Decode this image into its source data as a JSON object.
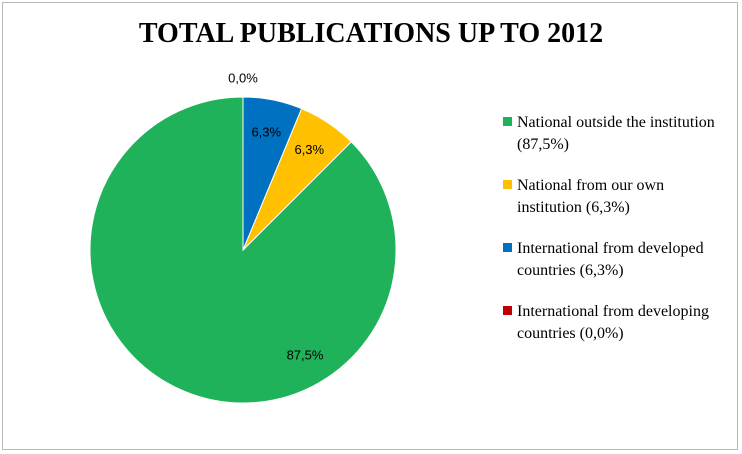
{
  "chart_data": {
    "type": "pie",
    "title": "TOTAL PUBLICATIONS UP TO 2012",
    "slices": [
      {
        "label": "National outside the institution (87,5%)",
        "value": 87.5,
        "data_label": "87,5%",
        "color": "#1fb25a"
      },
      {
        "label": "National from our own institution (6,3%)",
        "value": 6.25,
        "data_label": "6,3%",
        "color": "#ffc000"
      },
      {
        "label": "International from developed countries (6,3%)",
        "value": 6.25,
        "data_label": "6,3%",
        "color": "#0070c0"
      },
      {
        "label": "International from developing countries (0,0%)",
        "value": 0.0,
        "data_label": "0,0%",
        "color": "#c00000"
      }
    ],
    "legend_position": "right",
    "start_angle": "12 o'clock",
    "direction": "counter-clockwise"
  }
}
